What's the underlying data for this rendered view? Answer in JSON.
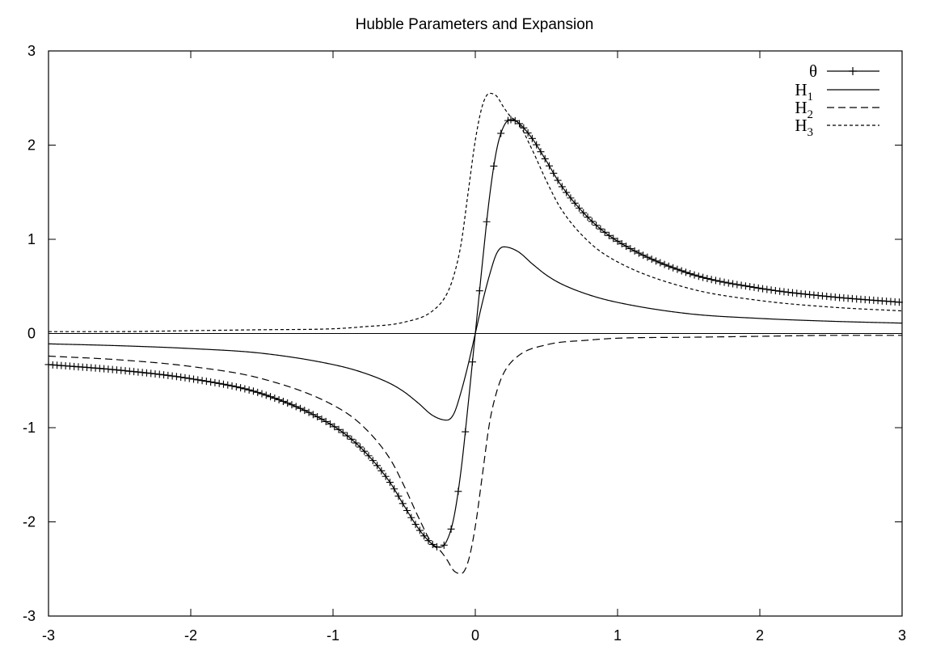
{
  "chart_data": {
    "type": "line",
    "title": "Hubble Parameters and Expansion",
    "xlabel": "",
    "ylabel": "",
    "xlim": [
      -3,
      3
    ],
    "ylim": [
      -3,
      3
    ],
    "xticks": [
      "-3",
      "-2",
      "-1",
      "0",
      "1",
      "2",
      "3"
    ],
    "yticks": [
      "-3",
      "-2",
      "-1",
      "0",
      "1",
      "2",
      "3"
    ],
    "grid": false,
    "legend_position": "top-right",
    "zero_line": true,
    "series": [
      {
        "name": "θ",
        "legend_main": "θ",
        "legend_sub": "",
        "style": "solid-with-plus-markers",
        "x": [
          -3,
          -2.5,
          -2,
          -1.5,
          -1,
          -0.8,
          -0.6,
          -0.5,
          -0.4,
          -0.3,
          -0.25,
          -0.2,
          -0.15,
          -0.1,
          -0.05,
          0,
          0.05,
          0.1,
          0.15,
          0.2,
          0.25,
          0.3,
          0.4,
          0.5,
          0.6,
          0.8,
          1,
          1.5,
          2,
          2.5,
          3
        ],
        "y": [
          -0.33,
          -0.39,
          -0.48,
          -0.64,
          -0.98,
          -1.22,
          -1.58,
          -1.83,
          -2.07,
          -2.24,
          -2.27,
          -2.2,
          -1.95,
          -1.45,
          -0.75,
          0,
          0.75,
          1.45,
          1.95,
          2.2,
          2.27,
          2.24,
          2.07,
          1.83,
          1.58,
          1.22,
          0.98,
          0.64,
          0.48,
          0.39,
          0.33
        ]
      },
      {
        "name": "H1",
        "legend_main": "H",
        "legend_sub": "1",
        "style": "solid",
        "x": [
          -3,
          -2.5,
          -2,
          -1.5,
          -1,
          -0.8,
          -0.6,
          -0.5,
          -0.4,
          -0.3,
          -0.2,
          -0.15,
          -0.1,
          -0.05,
          0,
          0.05,
          0.1,
          0.15,
          0.2,
          0.3,
          0.4,
          0.5,
          0.6,
          0.8,
          1,
          1.5,
          2,
          2.5,
          3
        ],
        "y": [
          -0.11,
          -0.13,
          -0.16,
          -0.21,
          -0.33,
          -0.41,
          -0.53,
          -0.62,
          -0.74,
          -0.87,
          -0.92,
          -0.85,
          -0.62,
          -0.33,
          0,
          0.33,
          0.62,
          0.85,
          0.92,
          0.87,
          0.74,
          0.62,
          0.53,
          0.41,
          0.33,
          0.21,
          0.16,
          0.13,
          0.11
        ]
      },
      {
        "name": "H2",
        "legend_main": "H",
        "legend_sub": "2",
        "style": "dashed",
        "x": [
          -3,
          -2.5,
          -2,
          -1.5,
          -1,
          -0.8,
          -0.6,
          -0.5,
          -0.4,
          -0.3,
          -0.25,
          -0.2,
          -0.15,
          -0.1,
          -0.05,
          0,
          0.05,
          0.1,
          0.15,
          0.2,
          0.3,
          0.5,
          0.8,
          1,
          1.5,
          2,
          2.5,
          3
        ],
        "y": [
          -0.24,
          -0.28,
          -0.35,
          -0.48,
          -0.76,
          -0.97,
          -1.33,
          -1.62,
          -1.95,
          -2.24,
          -2.3,
          -2.4,
          -2.52,
          -2.55,
          -2.42,
          -2.05,
          -1.5,
          -0.95,
          -0.62,
          -0.42,
          -0.24,
          -0.12,
          -0.07,
          -0.05,
          -0.04,
          -0.03,
          -0.02,
          -0.02
        ]
      },
      {
        "name": "H3",
        "legend_main": "H",
        "legend_sub": "3",
        "style": "dotted",
        "x": [
          -3,
          -2.5,
          -2,
          -1.5,
          -1,
          -0.8,
          -0.5,
          -0.3,
          -0.2,
          -0.15,
          -0.1,
          -0.05,
          0,
          0.05,
          0.1,
          0.15,
          0.2,
          0.25,
          0.3,
          0.4,
          0.5,
          0.6,
          0.8,
          1,
          1.5,
          2,
          2.5,
          3
        ],
        "y": [
          0.02,
          0.02,
          0.03,
          0.04,
          0.05,
          0.07,
          0.12,
          0.24,
          0.42,
          0.62,
          0.95,
          1.5,
          2.05,
          2.42,
          2.55,
          2.52,
          2.4,
          2.3,
          2.24,
          1.95,
          1.62,
          1.33,
          0.97,
          0.76,
          0.48,
          0.35,
          0.28,
          0.24
        ]
      }
    ]
  }
}
